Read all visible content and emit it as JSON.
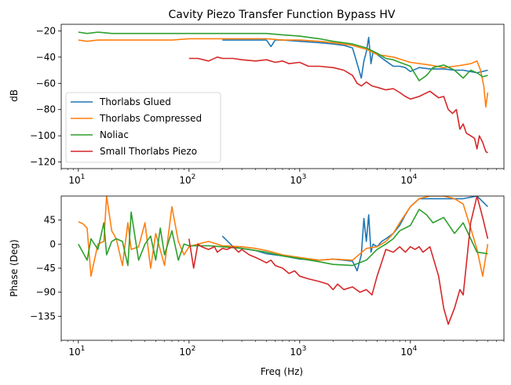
{
  "figure": {
    "colors": {
      "Thorlabs Glued": "#1f77b4",
      "Thorlabs Compressed": "#ff7f0e",
      "Noliac": "#2ca02c",
      "Small Thorlabs Piezo": "#d62728"
    }
  },
  "chart_data": [
    {
      "type": "line",
      "title": "Cavity Piezo Transfer Function Bypass HV",
      "xlabel": "",
      "ylabel": "dB",
      "xscale": "log",
      "xlim": [
        7,
        70000
      ],
      "ylim": [
        -125,
        -15
      ],
      "yticks": [
        -20,
        -40,
        -60,
        -80,
        -100,
        -120
      ],
      "xticks": [
        10,
        100,
        1000,
        10000
      ],
      "xtick_labels": [
        {
          "base": "10",
          "exp": "1"
        },
        {
          "base": "10",
          "exp": "2"
        },
        {
          "base": "10",
          "exp": "3"
        },
        {
          "base": "10",
          "exp": "4"
        }
      ],
      "legend": {
        "position": "lower-left",
        "entries": [
          "Thorlabs Glued",
          "Thorlabs Compressed",
          "Noliac",
          "Small Thorlabs Piezo"
        ]
      },
      "grid": false,
      "series": [
        {
          "name": "Thorlabs Glued",
          "x": [
            200,
            300,
            400,
            500,
            550,
            600,
            700,
            1000,
            1500,
            2000,
            2500,
            3000,
            3300,
            3600,
            3800,
            4000,
            4200,
            4400,
            4600,
            5000,
            6000,
            7000,
            8000,
            9000,
            10000,
            12000,
            15000,
            20000,
            25000,
            30000,
            40000,
            50000
          ],
          "y": [
            -27,
            -27,
            -27,
            -27,
            -32,
            -27,
            -27,
            -28,
            -29,
            -30,
            -31,
            -33,
            -45,
            -56,
            -43,
            -36,
            -25,
            -45,
            -36,
            -38,
            -43,
            -47,
            -47,
            -48,
            -51,
            -48,
            -49,
            -49,
            -50,
            -50,
            -52,
            -50
          ]
        },
        {
          "name": "Thorlabs Compressed",
          "x": [
            10,
            12,
            15,
            20,
            30,
            50,
            70,
            100,
            150,
            200,
            300,
            500,
            700,
            1000,
            1500,
            2000,
            3000,
            4000,
            5000,
            7000,
            10000,
            15000,
            20000,
            25000,
            30000,
            35000,
            40000,
            43000,
            46000,
            48000,
            50000
          ],
          "y": [
            -27,
            -28,
            -27,
            -27,
            -27,
            -27,
            -27,
            -26,
            -26,
            -26,
            -26,
            -26,
            -27,
            -27,
            -28,
            -29,
            -31,
            -34,
            -38,
            -40,
            -44,
            -46,
            -48,
            -47,
            -46,
            -45,
            -43,
            -50,
            -62,
            -78,
            -67
          ]
        },
        {
          "name": "Noliac",
          "x": [
            10,
            12,
            15,
            20,
            30,
            50,
            100,
            200,
            300,
            500,
            700,
            1000,
            1500,
            2000,
            3000,
            4000,
            5000,
            6000,
            7000,
            8000,
            10000,
            12000,
            14000,
            16000,
            20000,
            25000,
            30000,
            35000,
            40000,
            45000,
            50000
          ],
          "y": [
            -21,
            -22,
            -21,
            -22,
            -22,
            -22,
            -22,
            -22,
            -22,
            -22,
            -23,
            -24,
            -26,
            -28,
            -30,
            -33,
            -37,
            -41,
            -42,
            -44,
            -47,
            -58,
            -54,
            -48,
            -46,
            -50,
            -56,
            -50,
            -52,
            -55,
            -54
          ]
        },
        {
          "name": "Small Thorlabs Piezo",
          "x": [
            100,
            120,
            150,
            180,
            200,
            250,
            300,
            400,
            500,
            600,
            700,
            800,
            1000,
            1200,
            1500,
            2000,
            2500,
            3000,
            3300,
            3600,
            4000,
            4500,
            5000,
            6000,
            7000,
            8000,
            9000,
            10000,
            12000,
            15000,
            18000,
            20000,
            22000,
            24000,
            26000,
            28000,
            30000,
            32000,
            35000,
            38000,
            40000,
            42000,
            45000,
            48000,
            50000
          ],
          "y": [
            -41,
            -41,
            -43,
            -40,
            -41,
            -41,
            -42,
            -43,
            -42,
            -44,
            -43,
            -45,
            -44,
            -47,
            -47,
            -48,
            -50,
            -54,
            -60,
            -62,
            -59,
            -62,
            -63,
            -65,
            -64,
            -67,
            -70,
            -72,
            -70,
            -66,
            -71,
            -70,
            -80,
            -83,
            -80,
            -95,
            -91,
            -98,
            -100,
            -102,
            -110,
            -100,
            -105,
            -112,
            -113
          ]
        }
      ]
    },
    {
      "type": "line",
      "title": "",
      "xlabel": "Freq (Hz)",
      "ylabel": "Phase (Deg)",
      "xscale": "log",
      "xlim": [
        7,
        70000
      ],
      "ylim": [
        -180,
        90
      ],
      "yticks": [
        45,
        0,
        -45,
        -90,
        -135
      ],
      "xticks": [
        10,
        100,
        1000,
        10000
      ],
      "xtick_labels": [
        {
          "base": "10",
          "exp": "1"
        },
        {
          "base": "10",
          "exp": "2"
        },
        {
          "base": "10",
          "exp": "3"
        },
        {
          "base": "10",
          "exp": "4"
        }
      ],
      "grid": false,
      "series": [
        {
          "name": "Thorlabs Glued",
          "x": [
            200,
            250,
            300,
            400,
            500,
            700,
            1000,
            1500,
            2000,
            2500,
            3000,
            3300,
            3600,
            3800,
            4000,
            4200,
            4400,
            4600,
            5000,
            5500,
            6000,
            7000,
            8000,
            9000,
            10000,
            12000,
            15000,
            20000,
            30000,
            40000,
            50000
          ],
          "y": [
            15,
            -5,
            -8,
            -12,
            -18,
            -22,
            -28,
            -30,
            -28,
            -30,
            -32,
            -50,
            -20,
            48,
            5,
            55,
            -15,
            0,
            -5,
            5,
            10,
            20,
            35,
            55,
            70,
            85,
            85,
            85,
            85,
            90,
            70
          ]
        },
        {
          "name": "Thorlabs Compressed",
          "x": [
            10,
            11,
            12,
            13,
            15,
            17,
            18,
            20,
            22,
            25,
            28,
            30,
            35,
            40,
            45,
            50,
            60,
            70,
            80,
            90,
            100,
            120,
            150,
            200,
            300,
            400,
            500,
            700,
            1000,
            1500,
            2000,
            3000,
            4000,
            5000,
            6000,
            7000,
            8000,
            10000,
            12000,
            15000,
            20000,
            25000,
            30000,
            35000,
            40000,
            45000,
            50000
          ],
          "y": [
            42,
            38,
            30,
            -60,
            0,
            5,
            90,
            25,
            10,
            -40,
            40,
            -10,
            -5,
            40,
            -45,
            20,
            -40,
            70,
            5,
            -20,
            -5,
            0,
            5,
            -3,
            -5,
            -8,
            -12,
            -20,
            -25,
            -30,
            -28,
            -30,
            -8,
            -5,
            5,
            20,
            40,
            70,
            85,
            90,
            90,
            85,
            75,
            30,
            -10,
            -60,
            0
          ]
        },
        {
          "name": "Noliac",
          "x": [
            10,
            12,
            13,
            15,
            17,
            18,
            20,
            22,
            25,
            28,
            30,
            35,
            40,
            45,
            50,
            55,
            60,
            70,
            80,
            90,
            100,
            150,
            200,
            300,
            500,
            700,
            1000,
            1500,
            2000,
            3000,
            4000,
            5000,
            6000,
            7000,
            8000,
            10000,
            12000,
            14000,
            16000,
            20000,
            25000,
            30000,
            35000,
            40000,
            50000
          ],
          "y": [
            0,
            -30,
            10,
            -10,
            40,
            -20,
            5,
            10,
            5,
            -40,
            60,
            -30,
            0,
            15,
            -30,
            30,
            -20,
            25,
            -30,
            0,
            -3,
            -3,
            -5,
            -8,
            -15,
            -22,
            -27,
            -33,
            -38,
            -40,
            -30,
            -10,
            0,
            10,
            25,
            35,
            65,
            55,
            40,
            50,
            20,
            40,
            10,
            -15,
            -18
          ]
        },
        {
          "name": "Small Thorlabs Piezo",
          "x": [
            100,
            110,
            120,
            130,
            150,
            170,
            180,
            200,
            220,
            250,
            280,
            300,
            350,
            400,
            450,
            500,
            550,
            600,
            700,
            800,
            900,
            1000,
            1200,
            1500,
            1800,
            2000,
            2200,
            2500,
            3000,
            3500,
            4000,
            4500,
            5000,
            6000,
            7000,
            8000,
            9000,
            10000,
            11000,
            12000,
            13000,
            15000,
            18000,
            20000,
            22000,
            25000,
            28000,
            30000,
            35000,
            40000,
            45000,
            50000
          ],
          "y": [
            10,
            -45,
            0,
            -5,
            -10,
            -5,
            -15,
            -8,
            -10,
            -5,
            -15,
            -10,
            -20,
            -25,
            -30,
            -35,
            -30,
            -40,
            -45,
            -55,
            -50,
            -60,
            -65,
            -70,
            -75,
            -85,
            -75,
            -85,
            -80,
            -90,
            -85,
            -95,
            -60,
            -10,
            -15,
            -5,
            -15,
            -5,
            -10,
            -5,
            -15,
            -5,
            -60,
            -120,
            -150,
            -120,
            -85,
            -95,
            40,
            90,
            50,
            10
          ]
        }
      ]
    }
  ]
}
